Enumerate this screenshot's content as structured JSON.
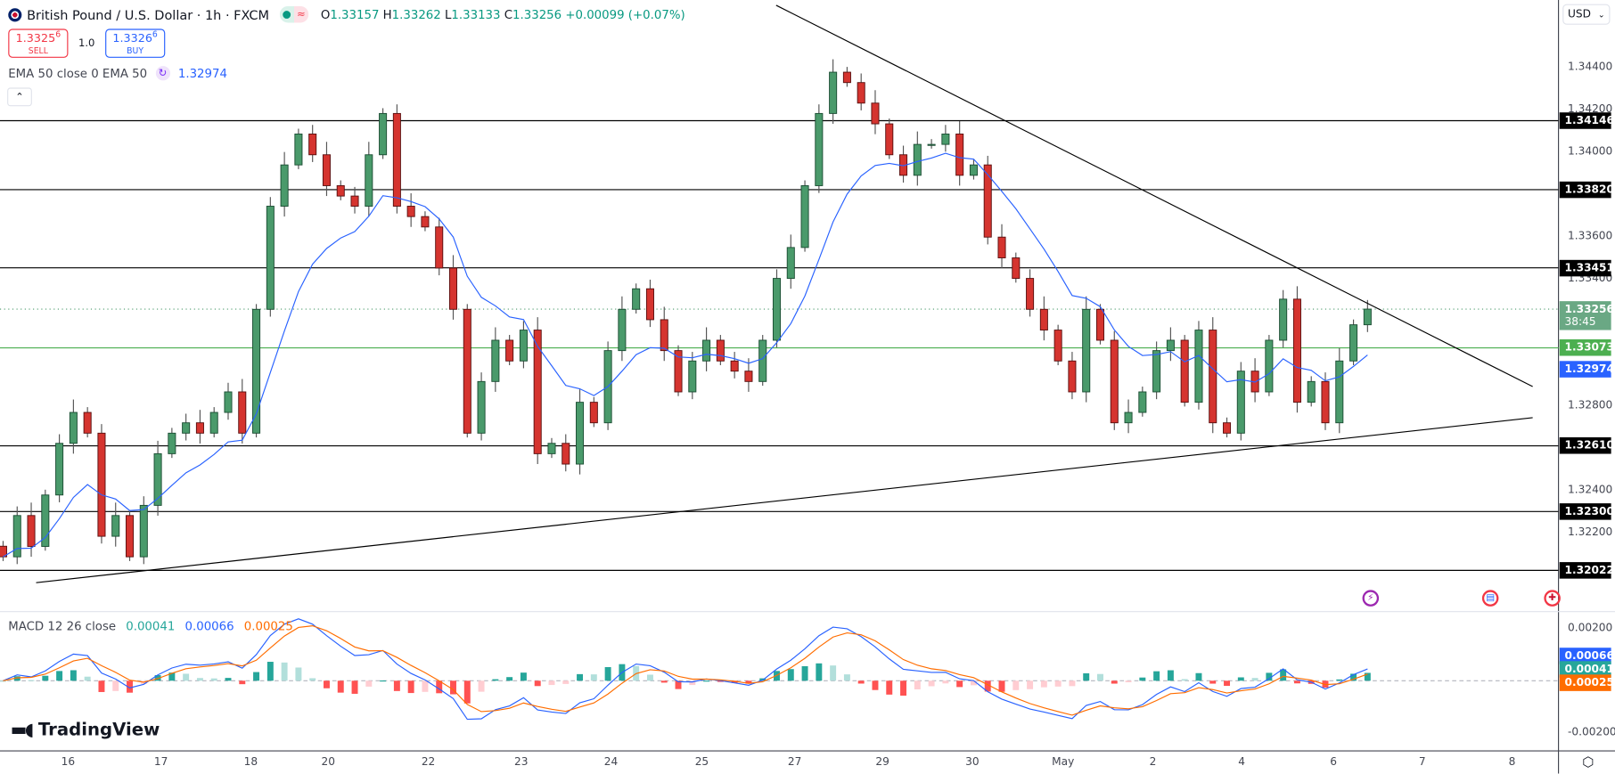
{
  "header": {
    "symbol_title": "British Pound / U.S. Dollar · 1h · FXCM",
    "status_icons": [
      "market-open-dot-icon",
      "delay-waves-icon"
    ],
    "ohlc": {
      "o_label": "O",
      "o": "1.33157",
      "h_label": "H",
      "h": "1.33262",
      "l_label": "L",
      "l": "1.33133",
      "c_label": "C",
      "c": "1.33256",
      "change": "+0.00099 (+0.07%)"
    }
  },
  "trade": {
    "sell_price": "1.3325",
    "sell_sup": "6",
    "sell_label": "SELL",
    "quantity": "1.0",
    "buy_price": "1.3326",
    "buy_sup": "6",
    "buy_label": "BUY"
  },
  "ema_legend": {
    "label": "EMA 50 close 0 EMA 50",
    "value": "1.32974"
  },
  "macd_legend": {
    "label": "MACD 12 26 close",
    "histogram": "0.00041",
    "macd": "0.00066",
    "signal": "0.00025"
  },
  "currency_select": "USD",
  "countdown": "38:45",
  "logo_text": "TradingView",
  "colors": {
    "up": "#4a9a6b",
    "down": "#d5342f",
    "ema": "#2962ff",
    "macd": "#2962ff",
    "signal": "#ff6d00",
    "hist_pos": "#26a69a",
    "hist_neg": "#ff5252",
    "support_green": "#4caf50",
    "last_price_bg": "#6aa884"
  },
  "chart_data": {
    "type": "candlestick",
    "title": "British Pound / U.S. Dollar · 1h · FXCM",
    "closes": [
      1.32086,
      1.32281,
      1.32135,
      1.32378,
      1.32622,
      1.32768,
      1.3267,
      1.32183,
      1.32281,
      1.32086,
      1.32329,
      1.32573,
      1.3267,
      1.32719,
      1.3267,
      1.32768,
      1.32865,
      1.3267,
      1.33255,
      1.33742,
      1.33937,
      1.34083,
      1.33985,
      1.33839,
      1.3379,
      1.33742,
      1.33985,
      1.3418,
      1.33742,
      1.33693,
      1.33644,
      1.3345,
      1.33255,
      1.3267,
      1.32914,
      1.33109,
      1.33011,
      1.33157,
      1.32573,
      1.32622,
      1.32524,
      1.32816,
      1.32719,
      1.3306,
      1.33255,
      1.33352,
      1.33206,
      1.3306,
      1.32865,
      1.33011,
      1.33109,
      1.33011,
      1.32963,
      1.32914,
      1.33109,
      1.33401,
      1.33547,
      1.33839,
      1.3418,
      1.34375,
      1.34326,
      1.34229,
      1.34131,
      1.33985,
      1.33888,
      1.34034,
      1.34034,
      1.34083,
      1.33888,
      1.33937,
      1.33596,
      1.33498,
      1.33401,
      1.33255,
      1.33157,
      1.33011,
      1.32865,
      1.33255,
      1.33109,
      1.32719,
      1.32768,
      1.32865,
      1.3306,
      1.33109,
      1.32816,
      1.33157,
      1.32719,
      1.3267,
      1.32963,
      1.32865,
      1.33109,
      1.33303,
      1.32816,
      1.32914,
      1.32719,
      1.33011,
      1.33182,
      1.33256
    ],
    "y_ticks": [
      "1.34400",
      "1.34200",
      "1.34000",
      "1.33600",
      "1.33400",
      "1.32800",
      "1.32400",
      "1.32200"
    ],
    "x_ticks": [
      "16",
      "17",
      "18",
      "20",
      "22",
      "23",
      "24",
      "25",
      "27",
      "29",
      "30",
      "May",
      "2",
      "4",
      "6",
      "7",
      "8"
    ],
    "horizontal_levels": [
      {
        "price": "1.34146",
        "color": "#000000"
      },
      {
        "price": "1.33820",
        "color": "#000000"
      },
      {
        "price": "1.33451",
        "color": "#000000"
      },
      {
        "price": "1.33073",
        "color": "#4caf50"
      },
      {
        "price": "1.32610",
        "color": "#000000"
      },
      {
        "price": "1.32300",
        "color": "#000000"
      },
      {
        "price": "1.32022",
        "color": "#000000"
      }
    ],
    "trendlines": [
      {
        "name": "descending-resistance",
        "from_price": 1.34691,
        "to_price": 1.3289
      },
      {
        "name": "ascending-support",
        "from_price": 1.31964,
        "to_price": 1.32743
      }
    ],
    "last_price": "1.33256",
    "ema_value": "1.32974",
    "macd_y_ticks": [
      "0.00200",
      "-0.00200"
    ],
    "macd_values": {
      "macd": "0.00066",
      "histogram": "0.00041",
      "signal": "0.00025"
    },
    "grid": false
  }
}
